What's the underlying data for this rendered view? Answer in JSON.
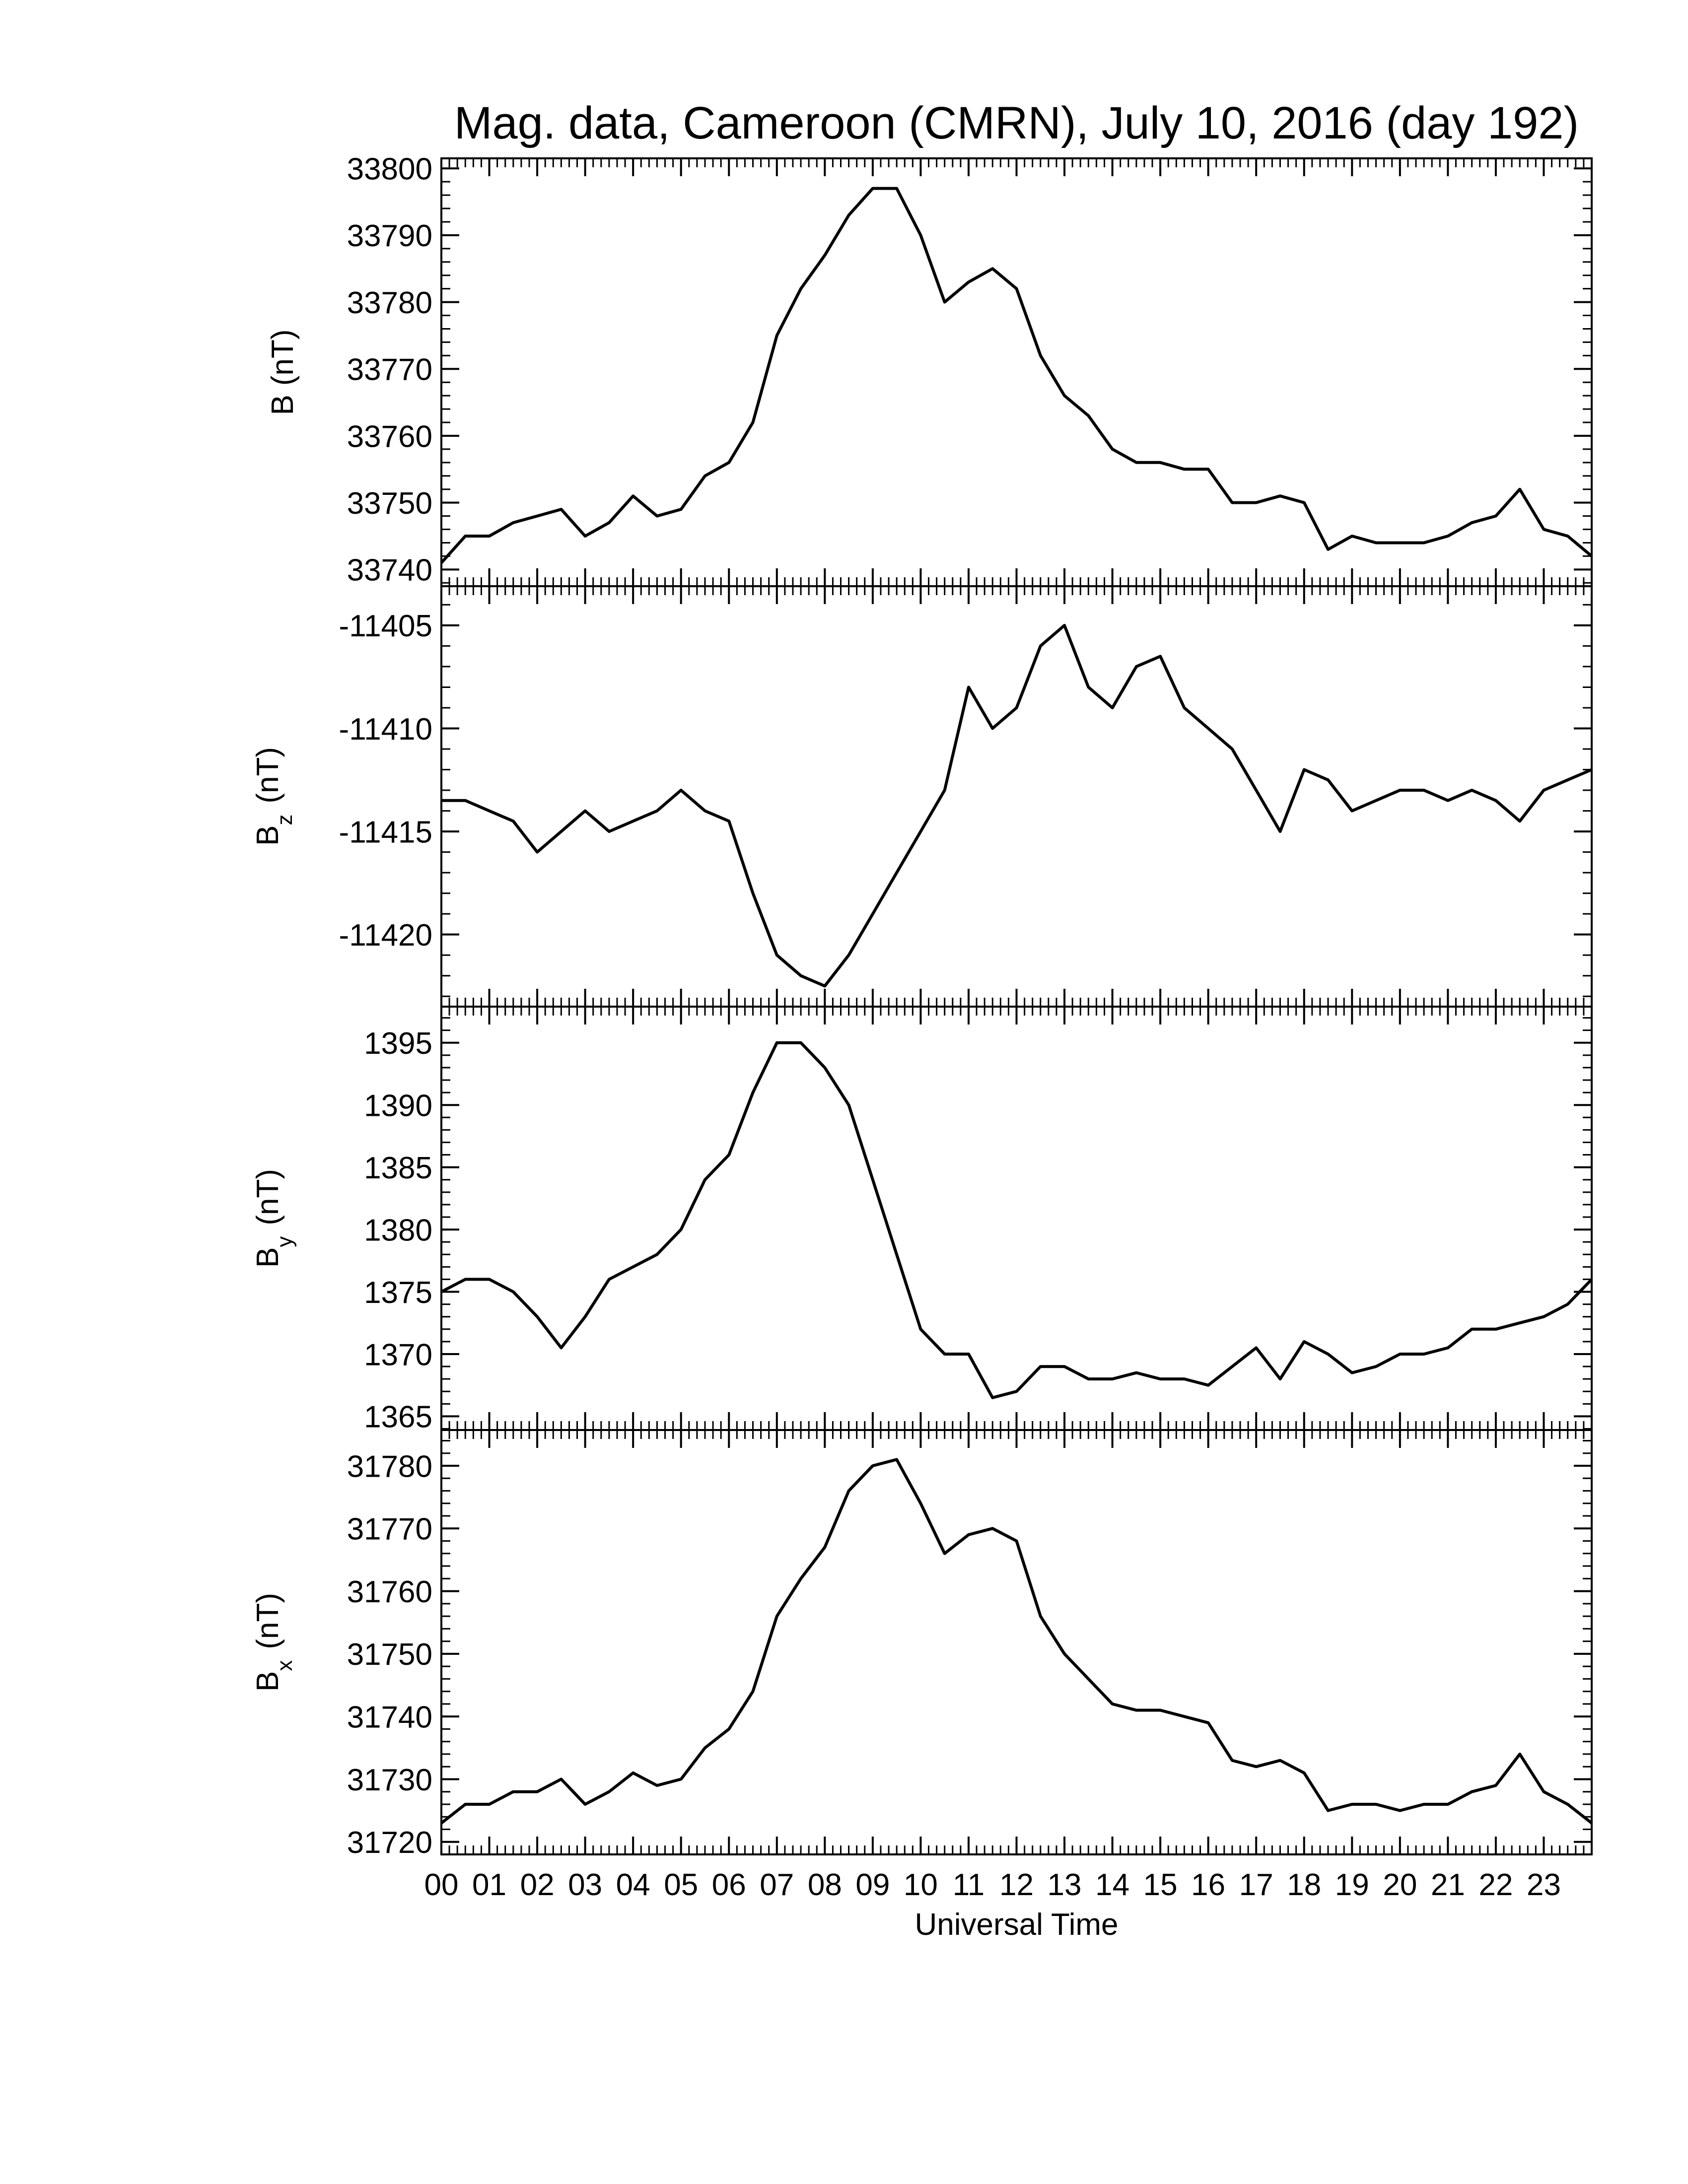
{
  "chart_data": [
    {
      "type": "line",
      "title": "Mag. data, Cameroon (CMRN), July 10, 2016 (day 192)",
      "ylabel": "B",
      "ylabel_unit": "(nT)",
      "color": "#000000",
      "xlim": [
        0,
        24
      ],
      "xticks": [
        0,
        1,
        2,
        3,
        4,
        5,
        6,
        7,
        8,
        9,
        10,
        11,
        12,
        13,
        14,
        15,
        16,
        17,
        18,
        19,
        20,
        21,
        22,
        23
      ],
      "ylim": [
        33737.5,
        33801.5
      ],
      "yticks": [
        33740,
        33750,
        33760,
        33770,
        33780,
        33790,
        33800
      ],
      "x": [
        0,
        0.5,
        1,
        1.5,
        2,
        2.5,
        3,
        3.5,
        4,
        4.5,
        5,
        5.5,
        6,
        6.5,
        7,
        7.5,
        8,
        8.5,
        9,
        9.5,
        10,
        10.5,
        11,
        11.5,
        12,
        12.5,
        13,
        13.5,
        14,
        14.5,
        15,
        15.5,
        16,
        16.5,
        17,
        17.5,
        18,
        18.5,
        19,
        19.5,
        20,
        20.5,
        21,
        21.5,
        22,
        22.5,
        23,
        23.5,
        24
      ],
      "values": [
        33741,
        33745,
        33745,
        33747,
        33748,
        33749,
        33745,
        33747,
        33751,
        33748,
        33749,
        33754,
        33756,
        33762,
        33775,
        33782,
        33787,
        33793,
        33797,
        33797,
        33790,
        33780,
        33783,
        33785,
        33782,
        33772,
        33766,
        33763,
        33758,
        33756,
        33756,
        33755,
        33755,
        33750,
        33750,
        33751,
        33750,
        33743,
        33745,
        33744,
        33744,
        33744,
        33745,
        33747,
        33748,
        33752,
        33746,
        33745,
        33742
      ]
    },
    {
      "type": "line",
      "ylabel": "B",
      "ylabel_subscript": "z",
      "ylabel_unit": "(nT)",
      "color": "#000000",
      "xlim": [
        0,
        24
      ],
      "xticks": [
        0,
        1,
        2,
        3,
        4,
        5,
        6,
        7,
        8,
        9,
        10,
        11,
        12,
        13,
        14,
        15,
        16,
        17,
        18,
        19,
        20,
        21,
        22,
        23
      ],
      "ylim": [
        -11423.5,
        -11403.1
      ],
      "yticks": [
        -11420,
        -11415,
        -11410,
        -11405
      ],
      "x": [
        0,
        0.5,
        1,
        1.5,
        2,
        2.5,
        3,
        3.5,
        4,
        4.5,
        5,
        5.5,
        6,
        6.5,
        7,
        7.5,
        8,
        8.5,
        9,
        9.5,
        10,
        10.5,
        11,
        11.5,
        12,
        12.5,
        13,
        13.5,
        14,
        14.5,
        15,
        15.5,
        16,
        16.5,
        17,
        17.5,
        18,
        18.5,
        19,
        19.5,
        20,
        20.5,
        21,
        21.5,
        22,
        22.5,
        23,
        23.5,
        24
      ],
      "values": [
        -11413.5,
        -11413.5,
        -11414,
        -11414.5,
        -11416,
        -11415,
        -11414,
        -11415,
        -11414.5,
        -11414,
        -11413,
        -11414,
        -11414.5,
        -11418,
        -11421,
        -11422,
        -11422.5,
        -11421,
        -11419,
        -11417,
        -11415,
        -11413,
        -11408,
        -11410,
        -11409,
        -11406,
        -11405,
        -11408,
        -11409,
        -11407,
        -11406.5,
        -11409,
        -11410,
        -11411,
        -11413,
        -11415,
        -11412,
        -11412.5,
        -11414,
        -11413.5,
        -11413,
        -11413,
        -11413.5,
        -11413,
        -11413.5,
        -11414.5,
        -11413,
        -11412.5,
        -11412
      ]
    },
    {
      "type": "line",
      "ylabel": "B",
      "ylabel_subscript": "y",
      "ylabel_unit": "(nT)",
      "color": "#000000",
      "xlim": [
        0,
        24
      ],
      "xticks": [
        0,
        1,
        2,
        3,
        4,
        5,
        6,
        7,
        8,
        9,
        10,
        11,
        12,
        13,
        14,
        15,
        16,
        17,
        18,
        19,
        20,
        21,
        22,
        23
      ],
      "ylim": [
        1363.9,
        1397.9
      ],
      "yticks": [
        1365,
        1370,
        1375,
        1380,
        1385,
        1390,
        1395
      ],
      "x": [
        0,
        0.5,
        1,
        1.5,
        2,
        2.5,
        3,
        3.5,
        4,
        4.5,
        5,
        5.5,
        6,
        6.5,
        7,
        7.5,
        8,
        8.5,
        9,
        9.5,
        10,
        10.5,
        11,
        11.5,
        12,
        12.5,
        13,
        13.5,
        14,
        14.5,
        15,
        15.5,
        16,
        16.5,
        17,
        17.5,
        18,
        18.5,
        19,
        19.5,
        20,
        20.5,
        21,
        21.5,
        22,
        22.5,
        23,
        23.5,
        24
      ],
      "values": [
        1375,
        1376,
        1376,
        1375,
        1373,
        1370.5,
        1373,
        1376,
        1377,
        1378,
        1380,
        1384,
        1386,
        1391,
        1395,
        1395,
        1393,
        1390,
        1384,
        1378,
        1372,
        1370,
        1370,
        1366.5,
        1367,
        1369,
        1369,
        1368,
        1368,
        1368.5,
        1368,
        1368,
        1367.5,
        1369,
        1370.5,
        1368,
        1371,
        1370,
        1368.5,
        1369,
        1370,
        1370,
        1370.5,
        1372,
        1372,
        1372.5,
        1373,
        1374,
        1376
      ]
    },
    {
      "type": "line",
      "ylabel": "B",
      "ylabel_subscript": "x",
      "ylabel_unit": "(nT)",
      "xlabel": "Universal Time",
      "color": "#000000",
      "xlim": [
        0,
        24
      ],
      "xticks": [
        {
          "value": 0,
          "label": "00"
        },
        {
          "value": 1,
          "label": "01"
        },
        {
          "value": 2,
          "label": "02"
        },
        {
          "value": 3,
          "label": "03"
        },
        {
          "value": 4,
          "label": "04"
        },
        {
          "value": 5,
          "label": "05"
        },
        {
          "value": 6,
          "label": "06"
        },
        {
          "value": 7,
          "label": "07"
        },
        {
          "value": 8,
          "label": "08"
        },
        {
          "value": 9,
          "label": "09"
        },
        10,
        11,
        12,
        13,
        14,
        15,
        16,
        17,
        18,
        19,
        20,
        21,
        22,
        23
      ],
      "ylim": [
        31718.0,
        31785.7
      ],
      "yticks": [
        31720,
        31730,
        31740,
        31750,
        31760,
        31770,
        31780
      ],
      "x": [
        0,
        0.5,
        1,
        1.5,
        2,
        2.5,
        3,
        3.5,
        4,
        4.5,
        5,
        5.5,
        6,
        6.5,
        7,
        7.5,
        8,
        8.5,
        9,
        9.5,
        10,
        10.5,
        11,
        11.5,
        12,
        12.5,
        13,
        13.5,
        14,
        14.5,
        15,
        15.5,
        16,
        16.5,
        17,
        17.5,
        18,
        18.5,
        19,
        19.5,
        20,
        20.5,
        21,
        21.5,
        22,
        22.5,
        23,
        23.5,
        24
      ],
      "values": [
        31723,
        31726,
        31726,
        31728,
        31728,
        31730,
        31726,
        31728,
        31731,
        31729,
        31730,
        31735,
        31738,
        31744,
        31756,
        31762,
        31767,
        31776,
        31780,
        31781,
        31774,
        31766,
        31769,
        31770,
        31768,
        31756,
        31750,
        31746,
        31742,
        31741,
        31741,
        31740,
        31739,
        31733,
        31732,
        31733,
        31731,
        31725,
        31726,
        31726,
        31725,
        31726,
        31726,
        31728,
        31729,
        31734,
        31728,
        31726,
        31723
      ]
    }
  ]
}
